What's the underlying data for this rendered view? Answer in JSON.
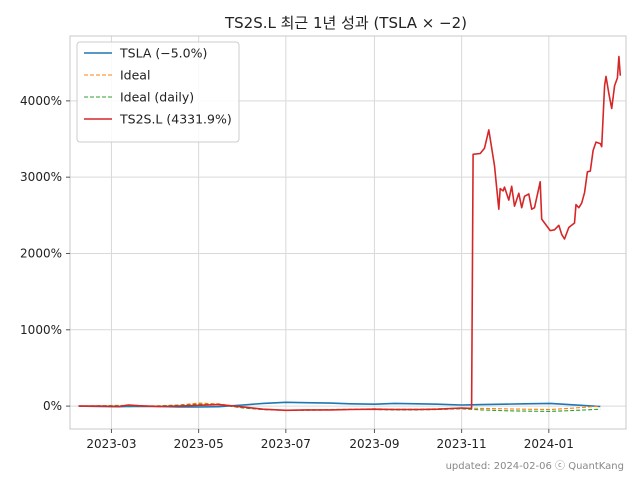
{
  "chart_data": {
    "type": "line",
    "title": "TS2S.L 최근 1년 성과 (TSLA × −2)",
    "xlabel": "",
    "ylabel": "",
    "x_range": [
      "2023-02-06",
      "2024-02-06"
    ],
    "xlim": [
      "2023-01-31",
      "2024-02-24"
    ],
    "ylim": [
      -300,
      4850
    ],
    "x_ticks": [
      "2023-03",
      "2023-05",
      "2023-07",
      "2023-09",
      "2023-11",
      "2024-01"
    ],
    "y_ticks": [
      0,
      1000,
      2000,
      3000,
      4000
    ],
    "y_tick_labels": [
      "0%",
      "1000%",
      "2000%",
      "3000%",
      "4000%"
    ],
    "grid": true,
    "legend_placement": "top-left",
    "series": [
      {
        "name": "TSLA (−5.0%)",
        "color": "#1f77b4",
        "style": "solid",
        "points": [
          [
            "2023-02-06",
            0
          ],
          [
            "2023-02-20",
            -5
          ],
          [
            "2023-03-06",
            -8
          ],
          [
            "2023-03-20",
            -2
          ],
          [
            "2023-04-03",
            -5
          ],
          [
            "2023-04-17",
            -10
          ],
          [
            "2023-05-01",
            -12
          ],
          [
            "2023-05-15",
            -8
          ],
          [
            "2023-06-01",
            15
          ],
          [
            "2023-06-15",
            35
          ],
          [
            "2023-07-01",
            50
          ],
          [
            "2023-07-15",
            45
          ],
          [
            "2023-08-01",
            40
          ],
          [
            "2023-08-15",
            30
          ],
          [
            "2023-09-01",
            25
          ],
          [
            "2023-09-15",
            35
          ],
          [
            "2023-10-01",
            30
          ],
          [
            "2023-10-15",
            25
          ],
          [
            "2023-11-01",
            15
          ],
          [
            "2023-11-15",
            20
          ],
          [
            "2023-12-01",
            25
          ],
          [
            "2023-12-15",
            30
          ],
          [
            "2024-01-02",
            35
          ],
          [
            "2024-01-15",
            20
          ],
          [
            "2024-02-06",
            -5
          ]
        ]
      },
      {
        "name": "Ideal",
        "color": "#ff7f0e",
        "style": "dashed",
        "points": [
          [
            "2023-02-06",
            0
          ],
          [
            "2023-02-20",
            5
          ],
          [
            "2023-03-06",
            10
          ],
          [
            "2023-03-20",
            0
          ],
          [
            "2023-04-03",
            5
          ],
          [
            "2023-04-17",
            15
          ],
          [
            "2023-05-01",
            40
          ],
          [
            "2023-05-15",
            30
          ],
          [
            "2023-06-01",
            -20
          ],
          [
            "2023-06-15",
            -45
          ],
          [
            "2023-07-01",
            -55
          ],
          [
            "2023-07-15",
            -50
          ],
          [
            "2023-08-01",
            -45
          ],
          [
            "2023-08-15",
            -40
          ],
          [
            "2023-09-01",
            -35
          ],
          [
            "2023-09-15",
            -40
          ],
          [
            "2023-10-01",
            -40
          ],
          [
            "2023-10-15",
            -35
          ],
          [
            "2023-11-01",
            -25
          ],
          [
            "2023-11-15",
            -30
          ],
          [
            "2023-12-01",
            -35
          ],
          [
            "2023-12-15",
            -40
          ],
          [
            "2024-01-02",
            -45
          ],
          [
            "2024-01-15",
            -30
          ],
          [
            "2024-02-06",
            0
          ]
        ]
      },
      {
        "name": "Ideal (daily)",
        "color": "#2ca02c",
        "style": "dashed",
        "points": [
          [
            "2023-02-06",
            0
          ],
          [
            "2023-02-20",
            2
          ],
          [
            "2023-03-06",
            5
          ],
          [
            "2023-03-20",
            0
          ],
          [
            "2023-04-03",
            2
          ],
          [
            "2023-04-17",
            10
          ],
          [
            "2023-05-01",
            25
          ],
          [
            "2023-05-15",
            20
          ],
          [
            "2023-06-01",
            -25
          ],
          [
            "2023-06-15",
            -45
          ],
          [
            "2023-07-01",
            -55
          ],
          [
            "2023-07-15",
            -55
          ],
          [
            "2023-08-01",
            -50
          ],
          [
            "2023-08-15",
            -45
          ],
          [
            "2023-09-01",
            -45
          ],
          [
            "2023-09-15",
            -50
          ],
          [
            "2023-10-01",
            -50
          ],
          [
            "2023-10-15",
            -45
          ],
          [
            "2023-11-01",
            -35
          ],
          [
            "2023-11-15",
            -50
          ],
          [
            "2023-12-01",
            -60
          ],
          [
            "2023-12-15",
            -65
          ],
          [
            "2024-01-02",
            -70
          ],
          [
            "2024-01-15",
            -60
          ],
          [
            "2024-02-06",
            -40
          ]
        ]
      },
      {
        "name": "TS2S.L (4331.9%)",
        "color": "#d62728",
        "style": "solid",
        "points": [
          [
            "2023-02-06",
            0
          ],
          [
            "2023-02-20",
            0
          ],
          [
            "2023-03-06",
            -5
          ],
          [
            "2023-03-13",
            15
          ],
          [
            "2023-03-20",
            5
          ],
          [
            "2023-04-03",
            -5
          ],
          [
            "2023-04-17",
            0
          ],
          [
            "2023-05-01",
            10
          ],
          [
            "2023-05-15",
            20
          ],
          [
            "2023-06-01",
            -10
          ],
          [
            "2023-06-15",
            -40
          ],
          [
            "2023-07-01",
            -55
          ],
          [
            "2023-07-15",
            -50
          ],
          [
            "2023-08-01",
            -50
          ],
          [
            "2023-08-15",
            -45
          ],
          [
            "2023-09-01",
            -40
          ],
          [
            "2023-09-15",
            -45
          ],
          [
            "2023-10-01",
            -45
          ],
          [
            "2023-10-15",
            -40
          ],
          [
            "2023-11-01",
            -25
          ],
          [
            "2023-11-08",
            -30
          ],
          [
            "2023-11-09",
            3300
          ],
          [
            "2023-11-14",
            3310
          ],
          [
            "2023-11-17",
            3380
          ],
          [
            "2023-11-20",
            3620
          ],
          [
            "2023-11-24",
            3150
          ],
          [
            "2023-11-27",
            2580
          ],
          [
            "2023-11-28",
            2850
          ],
          [
            "2023-11-30",
            2820
          ],
          [
            "2023-12-01",
            2870
          ],
          [
            "2023-12-04",
            2700
          ],
          [
            "2023-12-06",
            2880
          ],
          [
            "2023-12-08",
            2620
          ],
          [
            "2023-12-11",
            2790
          ],
          [
            "2023-12-13",
            2600
          ],
          [
            "2023-12-15",
            2750
          ],
          [
            "2023-12-18",
            2780
          ],
          [
            "2023-12-20",
            2580
          ],
          [
            "2023-12-22",
            2600
          ],
          [
            "2023-12-26",
            2940
          ],
          [
            "2023-12-27",
            2450
          ],
          [
            "2024-01-02",
            2300
          ],
          [
            "2024-01-05",
            2310
          ],
          [
            "2024-01-08",
            2370
          ],
          [
            "2024-01-10",
            2250
          ],
          [
            "2024-01-12",
            2190
          ],
          [
            "2024-01-15",
            2340
          ],
          [
            "2024-01-19",
            2400
          ],
          [
            "2024-01-20",
            2640
          ],
          [
            "2024-01-22",
            2600
          ],
          [
            "2024-01-24",
            2660
          ],
          [
            "2024-01-26",
            2800
          ],
          [
            "2024-01-28",
            3070
          ],
          [
            "2024-01-30",
            3080
          ],
          [
            "2024-02-01",
            3350
          ],
          [
            "2024-02-03",
            3460
          ],
          [
            "2024-02-06",
            3440
          ],
          [
            "2024-02-07",
            3400
          ],
          [
            "2024-02-09",
            4200
          ],
          [
            "2024-02-10",
            4320
          ],
          [
            "2024-02-12",
            4100
          ],
          [
            "2024-02-14",
            3900
          ],
          [
            "2024-02-16",
            4200
          ],
          [
            "2024-02-18",
            4300
          ],
          [
            "2024-02-19",
            4580
          ],
          [
            "2024-02-20",
            4330
          ]
        ]
      }
    ]
  },
  "footer": {
    "updated_text": "updated: 2024-02-06 ⓒ QuantKang"
  }
}
